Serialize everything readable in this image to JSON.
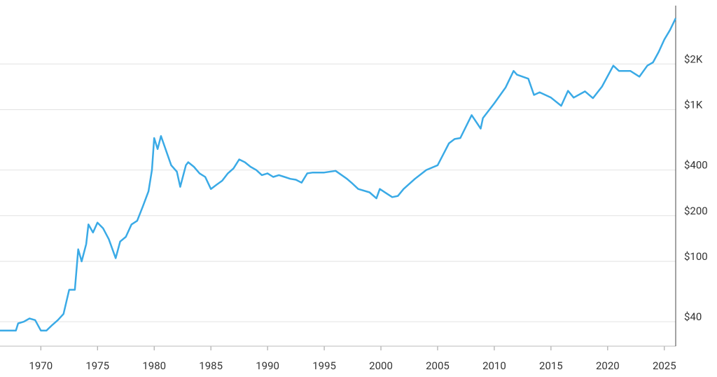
{
  "chart_data": {
    "type": "line",
    "log_scale_y": true,
    "grid": true,
    "x": [
      1966.4,
      1967.8,
      1968.0,
      1968.5,
      1969.0,
      1969.5,
      1970.0,
      1970.5,
      1971.0,
      1971.5,
      1972.0,
      1972.5,
      1973.0,
      1973.3,
      1973.6,
      1974.0,
      1974.2,
      1974.6,
      1975.0,
      1975.5,
      1976.0,
      1976.6,
      1977.0,
      1977.5,
      1978.0,
      1978.5,
      1979.0,
      1979.5,
      1979.8,
      1980.0,
      1980.3,
      1980.6,
      1981.0,
      1981.5,
      1982.0,
      1982.3,
      1982.8,
      1983.0,
      1983.5,
      1984.0,
      1984.5,
      1985.0,
      1985.5,
      1986.0,
      1986.5,
      1987.0,
      1987.5,
      1988.0,
      1988.5,
      1989.0,
      1989.5,
      1990.0,
      1990.5,
      1991.0,
      1991.5,
      1992.0,
      1992.5,
      1993.0,
      1993.5,
      1994.0,
      1995.0,
      1996.0,
      1997.0,
      1997.5,
      1998.0,
      1999.0,
      1999.6,
      1999.9,
      2000.5,
      2001.0,
      2001.5,
      2002.0,
      2003.0,
      2004.0,
      2005.0,
      2006.0,
      2006.5,
      2007.0,
      2008.0,
      2008.8,
      2009.0,
      2010.0,
      2011.0,
      2011.7,
      2012.0,
      2012.5,
      2013.0,
      2013.5,
      2014.0,
      2015.0,
      2015.9,
      2016.5,
      2017.0,
      2018.0,
      2018.7,
      2019.5,
      2020.5,
      2021.0,
      2022.0,
      2022.8,
      2023.5,
      2024.0,
      2024.5,
      2025.0,
      2025.5,
      2026.0
    ],
    "series": [
      {
        "color": "#3aaae6",
        "values": [
          35,
          35,
          39,
          40,
          42,
          41,
          35,
          35,
          38,
          41,
          45,
          65,
          65,
          120,
          100,
          130,
          175,
          155,
          180,
          165,
          140,
          105,
          135,
          145,
          175,
          185,
          230,
          290,
          400,
          650,
          550,
          670,
          550,
          430,
          390,
          310,
          430,
          450,
          420,
          380,
          360,
          300,
          320,
          340,
          380,
          410,
          470,
          450,
          420,
          400,
          370,
          380,
          360,
          370,
          360,
          350,
          345,
          330,
          380,
          385,
          385,
          395,
          350,
          325,
          300,
          285,
          260,
          300,
          280,
          265,
          270,
          300,
          350,
          400,
          430,
          600,
          640,
          650,
          920,
          750,
          880,
          1100,
          1400,
          1800,
          1700,
          1650,
          1600,
          1250,
          1300,
          1200,
          1060,
          1330,
          1200,
          1320,
          1190,
          1420,
          1950,
          1800,
          1800,
          1650,
          1950,
          2050,
          2400,
          2900,
          3350,
          4000
        ]
      }
    ],
    "xlim": [
      1966.4,
      2026.0
    ],
    "xticks": [
      1970,
      1975,
      1980,
      1985,
      1990,
      1995,
      2000,
      2005,
      2010,
      2015,
      2020,
      2025
    ],
    "ylim": [
      27.6,
      4850
    ],
    "yticks": [
      {
        "value": 40,
        "label": "$40"
      },
      {
        "value": 100,
        "label": "$100"
      },
      {
        "value": 200,
        "label": "$200"
      },
      {
        "value": 400,
        "label": "$400"
      },
      {
        "value": 1000,
        "label": "$1K"
      },
      {
        "value": 2000,
        "label": "$2K"
      }
    ]
  }
}
